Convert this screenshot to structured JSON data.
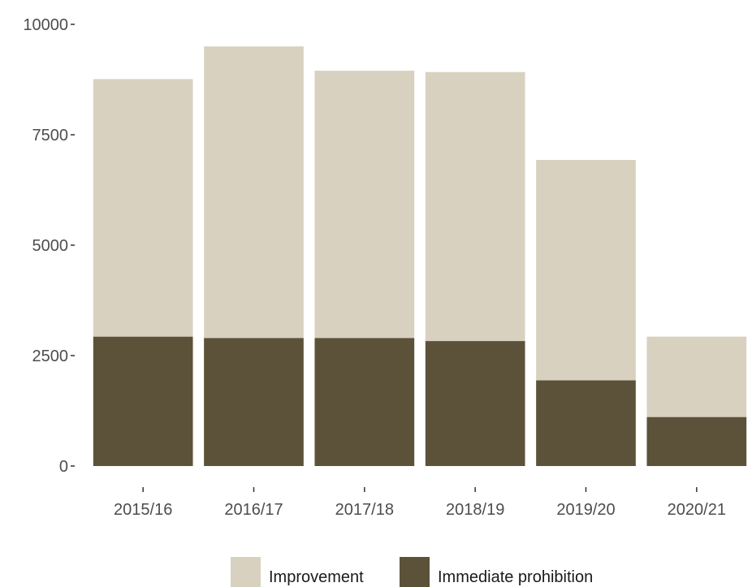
{
  "chart_data": {
    "type": "bar",
    "stacked": true,
    "categories": [
      "2015/16",
      "2016/17",
      "2017/18",
      "2018/19",
      "2019/20",
      "2020/21"
    ],
    "series": [
      {
        "name": "Immediate prohibition",
        "color": "#5c5239",
        "values": [
          2930,
          2900,
          2900,
          2830,
          1940,
          1110
        ]
      },
      {
        "name": "Improvement",
        "color": "#d8d1c0",
        "values": [
          5830,
          6600,
          6050,
          6090,
          4990,
          1820
        ]
      }
    ],
    "yticks": [
      0,
      2500,
      5000,
      7500,
      10000
    ],
    "ytick_labels": [
      "0",
      "2500",
      "5000",
      "7500",
      "10000"
    ],
    "ylim": [
      0,
      10000
    ],
    "grid": false,
    "legend": {
      "position": "bottom",
      "entries": [
        {
          "name": "Improvement",
          "color": "#d8d1c0"
        },
        {
          "name": "Immediate prohibition",
          "color": "#5c5239"
        }
      ]
    }
  }
}
